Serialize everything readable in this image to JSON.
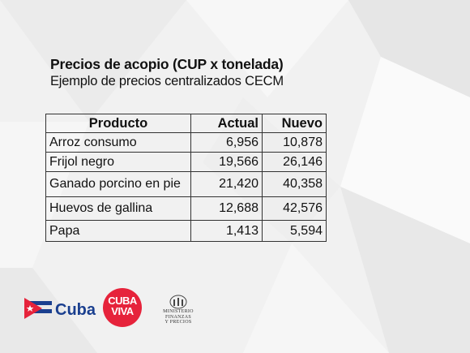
{
  "heading": {
    "title": "Precios de acopio (CUP x tonelada)",
    "subtitle": "Ejemplo de precios centralizados CECM"
  },
  "table": {
    "headers": [
      "Producto",
      "Actual",
      "Nuevo"
    ],
    "rows": [
      [
        "Arroz consumo",
        "6,956",
        "10,878"
      ],
      [
        "Frijol negro",
        "19,566",
        "26,146"
      ],
      [
        "Ganado porcino en pie",
        "21,420",
        "40,358"
      ],
      [
        "Huevos de gallina",
        "12,688",
        "42,576"
      ],
      [
        "Papa",
        "1,413",
        "5,594"
      ]
    ]
  },
  "logos": {
    "cuba": "Cuba",
    "cubaviva_line1": "CUBA",
    "cubaviva_line2": "VIVA",
    "minfin_line1": "MINISTERIO",
    "minfin_line2": "FINANZAS",
    "minfin_line3": "Y PRECIOS"
  },
  "colors": {
    "background": "#f1f1f1",
    "cuba_blue": "#1a3f8f",
    "cuba_red": "#e6233b"
  }
}
